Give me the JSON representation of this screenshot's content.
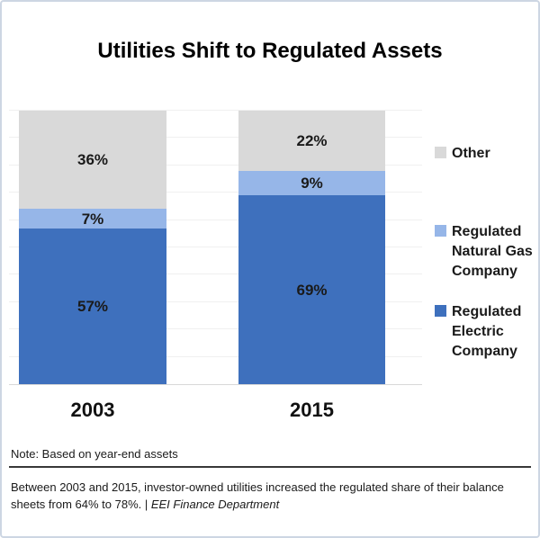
{
  "title": "Utilities Shift to Regulated Assets",
  "chart_data": {
    "type": "bar",
    "stacked": true,
    "orientation": "vertical",
    "title": "Utilities Shift to Regulated Assets",
    "categories": [
      "2003",
      "2015"
    ],
    "series": [
      {
        "name": "Regulated Electric Company",
        "values": [
          57,
          69
        ],
        "color": "#3E70BD"
      },
      {
        "name": "Regulated Natural Gas Company",
        "values": [
          7,
          9
        ],
        "color": "#96B6E8"
      },
      {
        "name": "Other",
        "values": [
          36,
          22
        ],
        "color": "#D9D9D9"
      }
    ],
    "data_label_suffix": "%",
    "ylim": [
      0,
      100
    ],
    "grid": true,
    "gridline_interval": 10,
    "legend_position": "right",
    "xlabel": "",
    "ylabel": ""
  },
  "legend": {
    "items": [
      {
        "label": "Other",
        "color": "#D9D9D9"
      },
      {
        "label": "Regulated Natural Gas Company",
        "color": "#96B6E8"
      },
      {
        "label": "Regulated Electric Company",
        "color": "#3E70BD"
      }
    ]
  },
  "footer": {
    "note": "Note: Based on year-end assets",
    "caption": "Between 2003 and 2015, investor-owned utilities increased the regulated share of their balance sheets from 64% to 78%. | ",
    "caption_source": "EEI Finance Department"
  },
  "colors": {
    "electric_blue": "#3E70BD",
    "gas_light_blue": "#96B6E8",
    "other_gray": "#D9D9D9",
    "frame_border": "#CDD6E3",
    "gridline": "#F0F0F0",
    "divider": "#383838"
  }
}
